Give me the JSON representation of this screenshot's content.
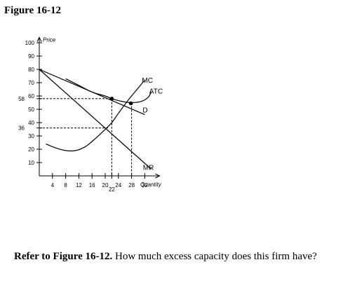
{
  "figure_title": "Figure 16-12",
  "question": {
    "prefix": "Refer to Figure 16-12.",
    "text": " How much excess capacity does this firm have?"
  },
  "chart_data": {
    "type": "line",
    "title": "",
    "ylabel": "Price",
    "xlabel": "Quantity",
    "xlim": [
      0,
      36
    ],
    "ylim": [
      0,
      100
    ],
    "x_ticks": [
      4,
      8,
      12,
      16,
      20,
      24,
      28,
      32
    ],
    "y_ticks": [
      10,
      20,
      30,
      40,
      50,
      60,
      70,
      80,
      90,
      100
    ],
    "y_tick_labels": [
      "10",
      "20",
      "30",
      "40",
      "50",
      "60",
      "70",
      "80",
      "90",
      "100"
    ],
    "extra_y_labels": [
      {
        "value": 58,
        "label": "58"
      },
      {
        "value": 36,
        "label": "36"
      }
    ],
    "extra_x_labels": [
      {
        "value": 22,
        "label": "22"
      }
    ],
    "series": [
      {
        "name": "D",
        "points": [
          [
            0,
            80
          ],
          [
            32,
            46
          ]
        ]
      },
      {
        "name": "MR",
        "points": [
          [
            0,
            80
          ],
          [
            34,
            5
          ]
        ]
      },
      {
        "name": "MC",
        "points": [
          [
            2,
            24
          ],
          [
            5,
            21
          ],
          [
            8,
            19
          ],
          [
            11,
            19
          ],
          [
            14,
            22
          ],
          [
            17,
            28
          ],
          [
            20,
            35
          ],
          [
            22,
            40
          ],
          [
            24,
            47
          ],
          [
            27,
            57
          ],
          [
            30,
            66
          ],
          [
            32,
            72
          ]
        ]
      },
      {
        "name": "ATC",
        "points": [
          [
            8,
            73
          ],
          [
            12,
            68
          ],
          [
            16,
            63
          ],
          [
            20,
            60
          ],
          [
            22,
            58
          ],
          [
            25,
            56
          ],
          [
            28,
            55
          ],
          [
            31,
            56
          ],
          [
            33,
            59
          ],
          [
            34,
            63
          ]
        ]
      }
    ],
    "highlight_points": [
      [
        22,
        58
      ],
      [
        27.8,
        54.5
      ]
    ],
    "dashed_guides": [
      {
        "from": [
          0,
          58
        ],
        "to": [
          22,
          58
        ]
      },
      {
        "from": [
          0,
          36
        ],
        "to": [
          21.2,
          36
        ]
      },
      {
        "from": [
          22,
          58
        ],
        "to": [
          22,
          0
        ]
      },
      {
        "from": [
          28,
          55
        ],
        "to": [
          28,
          0
        ]
      }
    ]
  }
}
